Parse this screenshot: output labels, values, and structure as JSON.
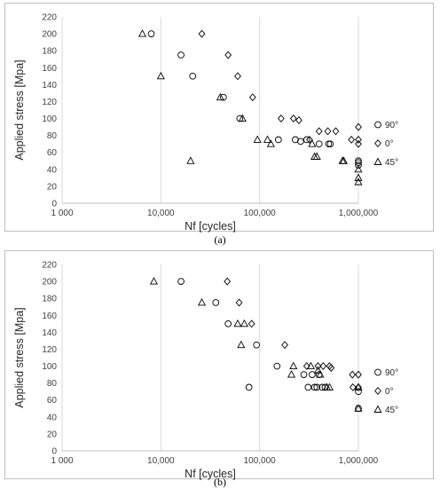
{
  "chart_data": [
    {
      "type": "scatter",
      "panel_label": "(a)",
      "xlabel": "Nf [cycles]",
      "ylabel": "Applied stress [Mpa]",
      "xscale": "log",
      "xlim": [
        1000,
        1000000
      ],
      "ylim": [
        0,
        220
      ],
      "yticks": [
        "0",
        "20",
        "40",
        "60",
        "80",
        "100",
        "120",
        "140",
        "160",
        "180",
        "200",
        "220"
      ],
      "xticks": [
        "1 000",
        "10,000",
        "100,000",
        "1,000,000"
      ],
      "grid": "vertical major gridlines",
      "legend_position": "right",
      "series": [
        {
          "name": "90°",
          "marker": "circle",
          "points": [
            [
              8000,
              200
            ],
            [
              16000,
              175
            ],
            [
              21000,
              150
            ],
            [
              43000,
              125
            ],
            [
              63000,
              100
            ],
            [
              155000,
              75
            ],
            [
              230000,
              75
            ],
            [
              260000,
              73
            ],
            [
              300000,
              75
            ],
            [
              400000,
              70
            ],
            [
              500000,
              70
            ],
            [
              520000,
              70
            ],
            [
              1000000,
              50
            ],
            [
              1000000,
              45
            ],
            [
              1000000,
              48
            ]
          ]
        },
        {
          "name": "0°",
          "marker": "diamond",
          "points": [
            [
              26000,
              200
            ],
            [
              48000,
              175
            ],
            [
              60000,
              150
            ],
            [
              85000,
              125
            ],
            [
              165000,
              100
            ],
            [
              220000,
              100
            ],
            [
              250000,
              98
            ],
            [
              320000,
              75
            ],
            [
              400000,
              85
            ],
            [
              490000,
              85
            ],
            [
              590000,
              85
            ],
            [
              850000,
              75
            ],
            [
              1000000,
              90
            ],
            [
              1000000,
              75
            ],
            [
              1000000,
              70
            ]
          ]
        },
        {
          "name": "45°",
          "marker": "triangle",
          "points": [
            [
              6500,
              200
            ],
            [
              10000,
              150
            ],
            [
              20000,
              50
            ],
            [
              40000,
              125
            ],
            [
              67000,
              100
            ],
            [
              95000,
              75
            ],
            [
              120000,
              75
            ],
            [
              130000,
              70
            ],
            [
              340000,
              70
            ],
            [
              360000,
              55
            ],
            [
              380000,
              55
            ],
            [
              690000,
              50
            ],
            [
              710000,
              50
            ],
            [
              1000000,
              40
            ],
            [
              1000000,
              30
            ],
            [
              1000000,
              25
            ]
          ]
        }
      ]
    },
    {
      "type": "scatter",
      "panel_label": "(b)",
      "xlabel": "Nf [cycles]",
      "ylabel": "Applied stress [Mpa]",
      "xscale": "log",
      "xlim": [
        1000,
        1000000
      ],
      "ylim": [
        0,
        220
      ],
      "yticks": [
        "0",
        "20",
        "40",
        "60",
        "80",
        "100",
        "120",
        "140",
        "160",
        "180",
        "200",
        "220"
      ],
      "xticks": [
        "1 000",
        "10,000",
        "100,000",
        "1,000,000"
      ],
      "grid": "vertical major gridlines",
      "legend_position": "right",
      "series": [
        {
          "name": "90°",
          "marker": "circle",
          "points": [
            [
              16000,
              200
            ],
            [
              36000,
              175
            ],
            [
              48000,
              150
            ],
            [
              93000,
              125
            ],
            [
              78000,
              75
            ],
            [
              150000,
              100
            ],
            [
              280000,
              90
            ],
            [
              310000,
              75
            ],
            [
              340000,
              90
            ],
            [
              360000,
              75
            ],
            [
              380000,
              75
            ],
            [
              400000,
              90
            ],
            [
              430000,
              75
            ],
            [
              460000,
              75
            ],
            [
              1000000,
              70
            ],
            [
              1000000,
              50
            ]
          ]
        },
        {
          "name": "0°",
          "marker": "diamond",
          "points": [
            [
              47000,
              200
            ],
            [
              62000,
              175
            ],
            [
              83000,
              150
            ],
            [
              180000,
              125
            ],
            [
              300000,
              100
            ],
            [
              390000,
              100
            ],
            [
              440000,
              100
            ],
            [
              510000,
              100
            ],
            [
              530000,
              98
            ],
            [
              870000,
              90
            ],
            [
              880000,
              75
            ],
            [
              1000000,
              90
            ],
            [
              1000000,
              75
            ]
          ]
        },
        {
          "name": "45°",
          "marker": "triangle",
          "points": [
            [
              8500,
              200
            ],
            [
              26000,
              175
            ],
            [
              60000,
              150
            ],
            [
              70000,
              150
            ],
            [
              65000,
              125
            ],
            [
              210000,
              90
            ],
            [
              220000,
              100
            ],
            [
              330000,
              100
            ],
            [
              390000,
              95
            ],
            [
              410000,
              90
            ],
            [
              480000,
              75
            ],
            [
              510000,
              75
            ],
            [
              1000000,
              75
            ],
            [
              1000000,
              50
            ]
          ]
        }
      ]
    }
  ]
}
